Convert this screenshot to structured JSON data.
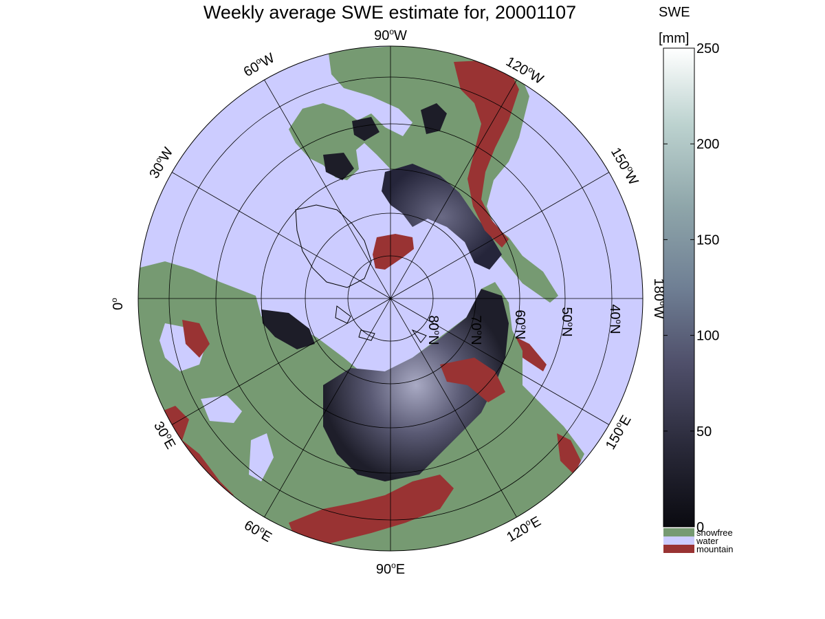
{
  "title": "Weekly average SWE estimate for, 20001107",
  "colorbar": {
    "label_line1": "SWE",
    "label_line2": "[mm]",
    "ticks": [
      0,
      50,
      100,
      150,
      200,
      250
    ],
    "range": [
      0,
      250
    ],
    "gradient_colors": [
      "#0a0a10",
      "#2a2a3a",
      "#4f4f6a",
      "#6f7f94",
      "#8fa6aa",
      "#bcd2cf",
      "#ffffff"
    ]
  },
  "legend": [
    {
      "label": "snowfree",
      "color": "#769a72"
    },
    {
      "label": "water",
      "color": "#ccccff"
    },
    {
      "label": "mountain",
      "color": "#993333"
    }
  ],
  "map": {
    "projection": "north-polar-stereographic",
    "ocean_color": "#ccccff",
    "longitude_labels": [
      {
        "deg": "90",
        "hem": "W"
      },
      {
        "deg": "120",
        "hem": "W"
      },
      {
        "deg": "150",
        "hem": "W"
      },
      {
        "deg": "180",
        "hem": "W"
      },
      {
        "deg": "150",
        "hem": "E"
      },
      {
        "deg": "120",
        "hem": "E"
      },
      {
        "deg": "90",
        "hem": "E"
      },
      {
        "deg": "60",
        "hem": "E"
      },
      {
        "deg": "30",
        "hem": "E"
      },
      {
        "deg": "0",
        "hem": ""
      },
      {
        "deg": "30",
        "hem": "W"
      },
      {
        "deg": "60",
        "hem": "W"
      }
    ],
    "latitude_labels": [
      {
        "deg": "80",
        "hem": "N"
      },
      {
        "deg": "70",
        "hem": "N"
      },
      {
        "deg": "60",
        "hem": "N"
      },
      {
        "deg": "50",
        "hem": "N"
      },
      {
        "deg": "40",
        "hem": "N"
      }
    ]
  }
}
